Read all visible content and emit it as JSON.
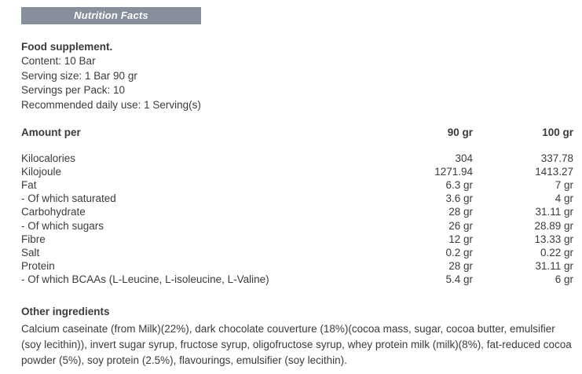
{
  "banner": {
    "label": "Nutrition Facts",
    "bg_color": "#878e9c",
    "text_color": "#ffffff"
  },
  "supplement_info": {
    "title": "Food supplement.",
    "lines": [
      "Content: 10 Bar",
      "Serving size: 1 Bar 90 gr",
      "Servings per Pack: 10",
      "Recommended daily use: 1 Serving(s)"
    ]
  },
  "nutrition_table": {
    "headers": {
      "amount_per": "Amount per",
      "col_90": "90 gr",
      "col_100": "100 gr"
    },
    "rows": [
      {
        "label": "Kilocalories",
        "per_90": "304",
        "per_100": "337.78"
      },
      {
        "label": "Kilojoule",
        "per_90": "1271.94",
        "per_100": "1413.27"
      },
      {
        "label": "Fat",
        "per_90": "6.3 gr",
        "per_100": "7 gr"
      },
      {
        "label": "- Of which saturated",
        "per_90": "3.6 gr",
        "per_100": "4 gr"
      },
      {
        "label": "Carbohydrate",
        "per_90": "28 gr",
        "per_100": "31.11 gr"
      },
      {
        "label": "- Of which sugars",
        "per_90": "26 gr",
        "per_100": "28.89 gr"
      },
      {
        "label": "Fibre",
        "per_90": "12 gr",
        "per_100": "13.33 gr"
      },
      {
        "label": "Salt",
        "per_90": "0.2 gr",
        "per_100": "0.22 gr"
      },
      {
        "label": "Protein",
        "per_90": "28 gr",
        "per_100": "31.11 gr"
      },
      {
        "label": "- Of which BCAAs (L-Leucine, L-isoleucine, L-Valine)",
        "per_90": "5.4 gr",
        "per_100": "6 gr"
      }
    ]
  },
  "other_ingredients": {
    "title": "Other ingredients",
    "text": "Calcium caseinate (from Milk)(22%), dark chocolate couverture (18%)(cocoa mass, sugar, cocoa butter, emulsifier (soy lecithin)), invert sugar syrup, fructose syrup, oligofructose syrup, whey protein milk (milk)(8%), fat-reduced cocoa powder (5%), soy protein (2.5%), flavourings, emulsifier (soy lecithin)."
  },
  "colors": {
    "text": "#3b3b3b",
    "background": "#ffffff"
  }
}
